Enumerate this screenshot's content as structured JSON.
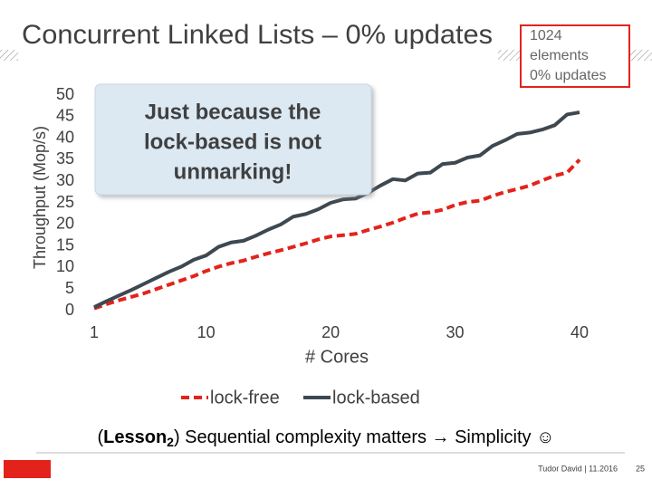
{
  "slide_title": "Concurrent Linked Lists – 0% updates",
  "config_box": [
    "1024",
    "elements",
    "0% updates"
  ],
  "callout": [
    "Just because the",
    "lock-based is not",
    "unmarking!"
  ],
  "lesson": {
    "open": "(",
    "bold": "Lesson",
    "sub": "2",
    "rest": ") Sequential complexity matters → Simplicity ☺"
  },
  "footer": {
    "author": "Tudor David | 11.2016",
    "page": "25"
  },
  "chart_data": {
    "type": "line",
    "x_label": "# Cores",
    "y_label": "Throughput (Mop/s)",
    "x": [
      1,
      2,
      3,
      4,
      5,
      6,
      7,
      8,
      9,
      10,
      11,
      12,
      13,
      14,
      15,
      16,
      17,
      18,
      19,
      20,
      21,
      22,
      23,
      24,
      25,
      26,
      27,
      28,
      29,
      30,
      31,
      32,
      33,
      34,
      35,
      36,
      37,
      38,
      39,
      40
    ],
    "series": [
      {
        "name": "lock-free",
        "color": "#e3231b",
        "dashed": true,
        "values": [
          0.5,
          1.5,
          2.4,
          3.2,
          4.0,
          5.0,
          6.0,
          7.0,
          8.0,
          9.2,
          10.2,
          11.0,
          11.6,
          12.5,
          13.3,
          14.0,
          14.8,
          15.6,
          16.5,
          17.2,
          17.5,
          17.8,
          18.7,
          19.5,
          20.4,
          21.5,
          22.5,
          22.8,
          23.4,
          24.5,
          25.2,
          25.5,
          26.6,
          27.5,
          28.2,
          29.0,
          30.2,
          31.3,
          32.0,
          35.0
        ]
      },
      {
        "name": "lock-based",
        "color": "#3e4850",
        "dashed": false,
        "values": [
          0.8,
          2.2,
          3.5,
          4.8,
          6.2,
          7.6,
          9.0,
          10.2,
          11.8,
          12.8,
          14.8,
          15.8,
          16.2,
          17.4,
          18.8,
          20.0,
          21.8,
          22.4,
          23.5,
          25.0,
          25.8,
          26.0,
          27.3,
          29.0,
          30.5,
          30.2,
          31.8,
          32.0,
          34.0,
          34.3,
          35.5,
          36.0,
          38.2,
          39.5,
          41.0,
          41.3,
          42.0,
          43.0,
          45.5,
          46.0
        ]
      }
    ],
    "xlim": [
      1,
      40
    ],
    "xticks": [
      1,
      10,
      20,
      30,
      40
    ],
    "ylim": [
      0,
      50
    ],
    "yticks": [
      0,
      5,
      10,
      15,
      20,
      25,
      30,
      35,
      40,
      45,
      50
    ],
    "legend": "bottom",
    "grid": false
  }
}
